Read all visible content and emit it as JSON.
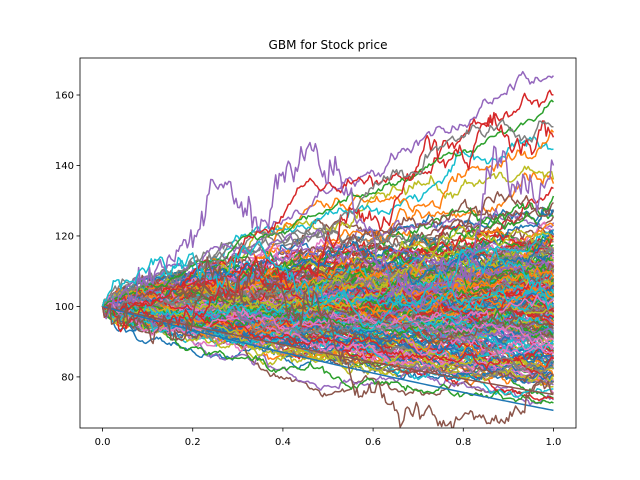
{
  "chart_data": {
    "type": "line",
    "title": "GBM for Stock price",
    "xlabel": "",
    "ylabel": "",
    "xlim": [
      -0.05,
      1.05
    ],
    "ylim": [
      65.5,
      170.5
    ],
    "x_ticks": [
      0.0,
      0.2,
      0.4,
      0.6,
      0.8,
      1.0
    ],
    "x_tick_labels": [
      "0.0",
      "0.2",
      "0.4",
      "0.6",
      "0.8",
      "1.0"
    ],
    "y_ticks": [
      80,
      100,
      120,
      140,
      160
    ],
    "y_tick_labels": [
      "80",
      "100",
      "120",
      "140",
      "160"
    ],
    "grid": false,
    "legend": "none",
    "start_value": 100,
    "x_range": [
      0.0,
      1.0
    ],
    "steps_per_path": 250,
    "path_count": 300,
    "terminal_value_range": [
      70.5,
      165.5
    ],
    "palette": [
      "#1f77b4",
      "#ff7f0e",
      "#2ca02c",
      "#d62728",
      "#9467bd",
      "#8c564b",
      "#e377c2",
      "#7f7f7f",
      "#bcbd22",
      "#17becf"
    ],
    "series": [
      {
        "color": "#9467bd",
        "max_value": 165.5,
        "end_value": 165.5
      },
      {
        "color": "#d62728",
        "max_value": 160.0,
        "end_value": 160.0
      },
      {
        "color": "#2ca02c",
        "max_value": 158.5,
        "end_value": 158.0
      },
      {
        "color": "#d62728",
        "max_value": 155.0,
        "end_value": 148.0
      },
      {
        "color": "#7f7f7f",
        "max_value": 151.0,
        "end_value": 151.0
      },
      {
        "color": "#9467bd",
        "max_value": 146.5,
        "end_value": 140.0
      },
      {
        "color": "#8c564b",
        "max_value": 84.0,
        "end_value": 75.0
      },
      {
        "color": "#1f77b4",
        "max_value": 100.0,
        "end_value": 70.5
      },
      {
        "color": "#17becf",
        "max_value": 118.5,
        "end_value": 100.0
      },
      {
        "color": "#8c564b",
        "max_value": 114.0,
        "end_value": 75.5
      }
    ]
  }
}
